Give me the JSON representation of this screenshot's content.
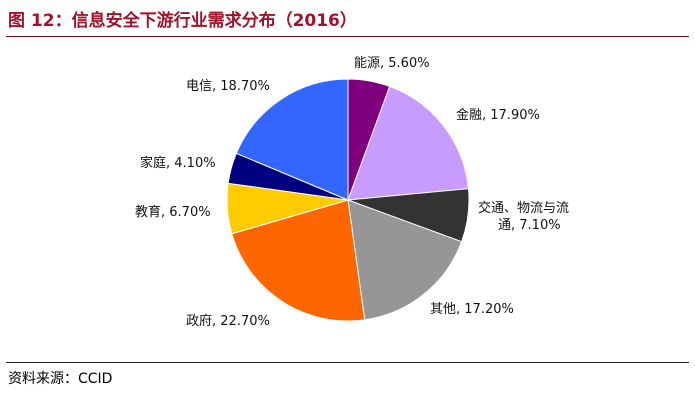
{
  "figure": {
    "title": "图 12：信息安全下游行业需求分布（2016）",
    "source": "资料来源：CCID"
  },
  "chart_data": {
    "type": "pie",
    "start": "12 o'clock",
    "direction": "clockwise",
    "slices": [
      {
        "label_lines": [
          "能源, 5.60%"
        ],
        "name": "能源",
        "value": 5.6,
        "color": "#7f007f"
      },
      {
        "label_lines": [
          "金融, 17.90%"
        ],
        "name": "金融",
        "value": 17.9,
        "color": "#c89bff"
      },
      {
        "label_lines": [
          "交通、物流与流",
          "通, 7.10%"
        ],
        "name": "交通、物流与流通",
        "value": 7.1,
        "color": "#333333"
      },
      {
        "label_lines": [
          "其他, 17.20%"
        ],
        "name": "其他",
        "value": 17.2,
        "color": "#969696"
      },
      {
        "label_lines": [
          "政府, 22.70%"
        ],
        "name": "政府",
        "value": 22.7,
        "color": "#ff6600"
      },
      {
        "label_lines": [
          "教育, 6.70%"
        ],
        "name": "教育",
        "value": 6.7,
        "color": "#ffcc00"
      },
      {
        "label_lines": [
          "家庭, 4.10%"
        ],
        "name": "家庭",
        "value": 4.1,
        "color": "#000080"
      },
      {
        "label_lines": [
          "电信, 18.70%"
        ],
        "name": "电信",
        "value": 18.7,
        "color": "#3366ff"
      }
    ]
  }
}
